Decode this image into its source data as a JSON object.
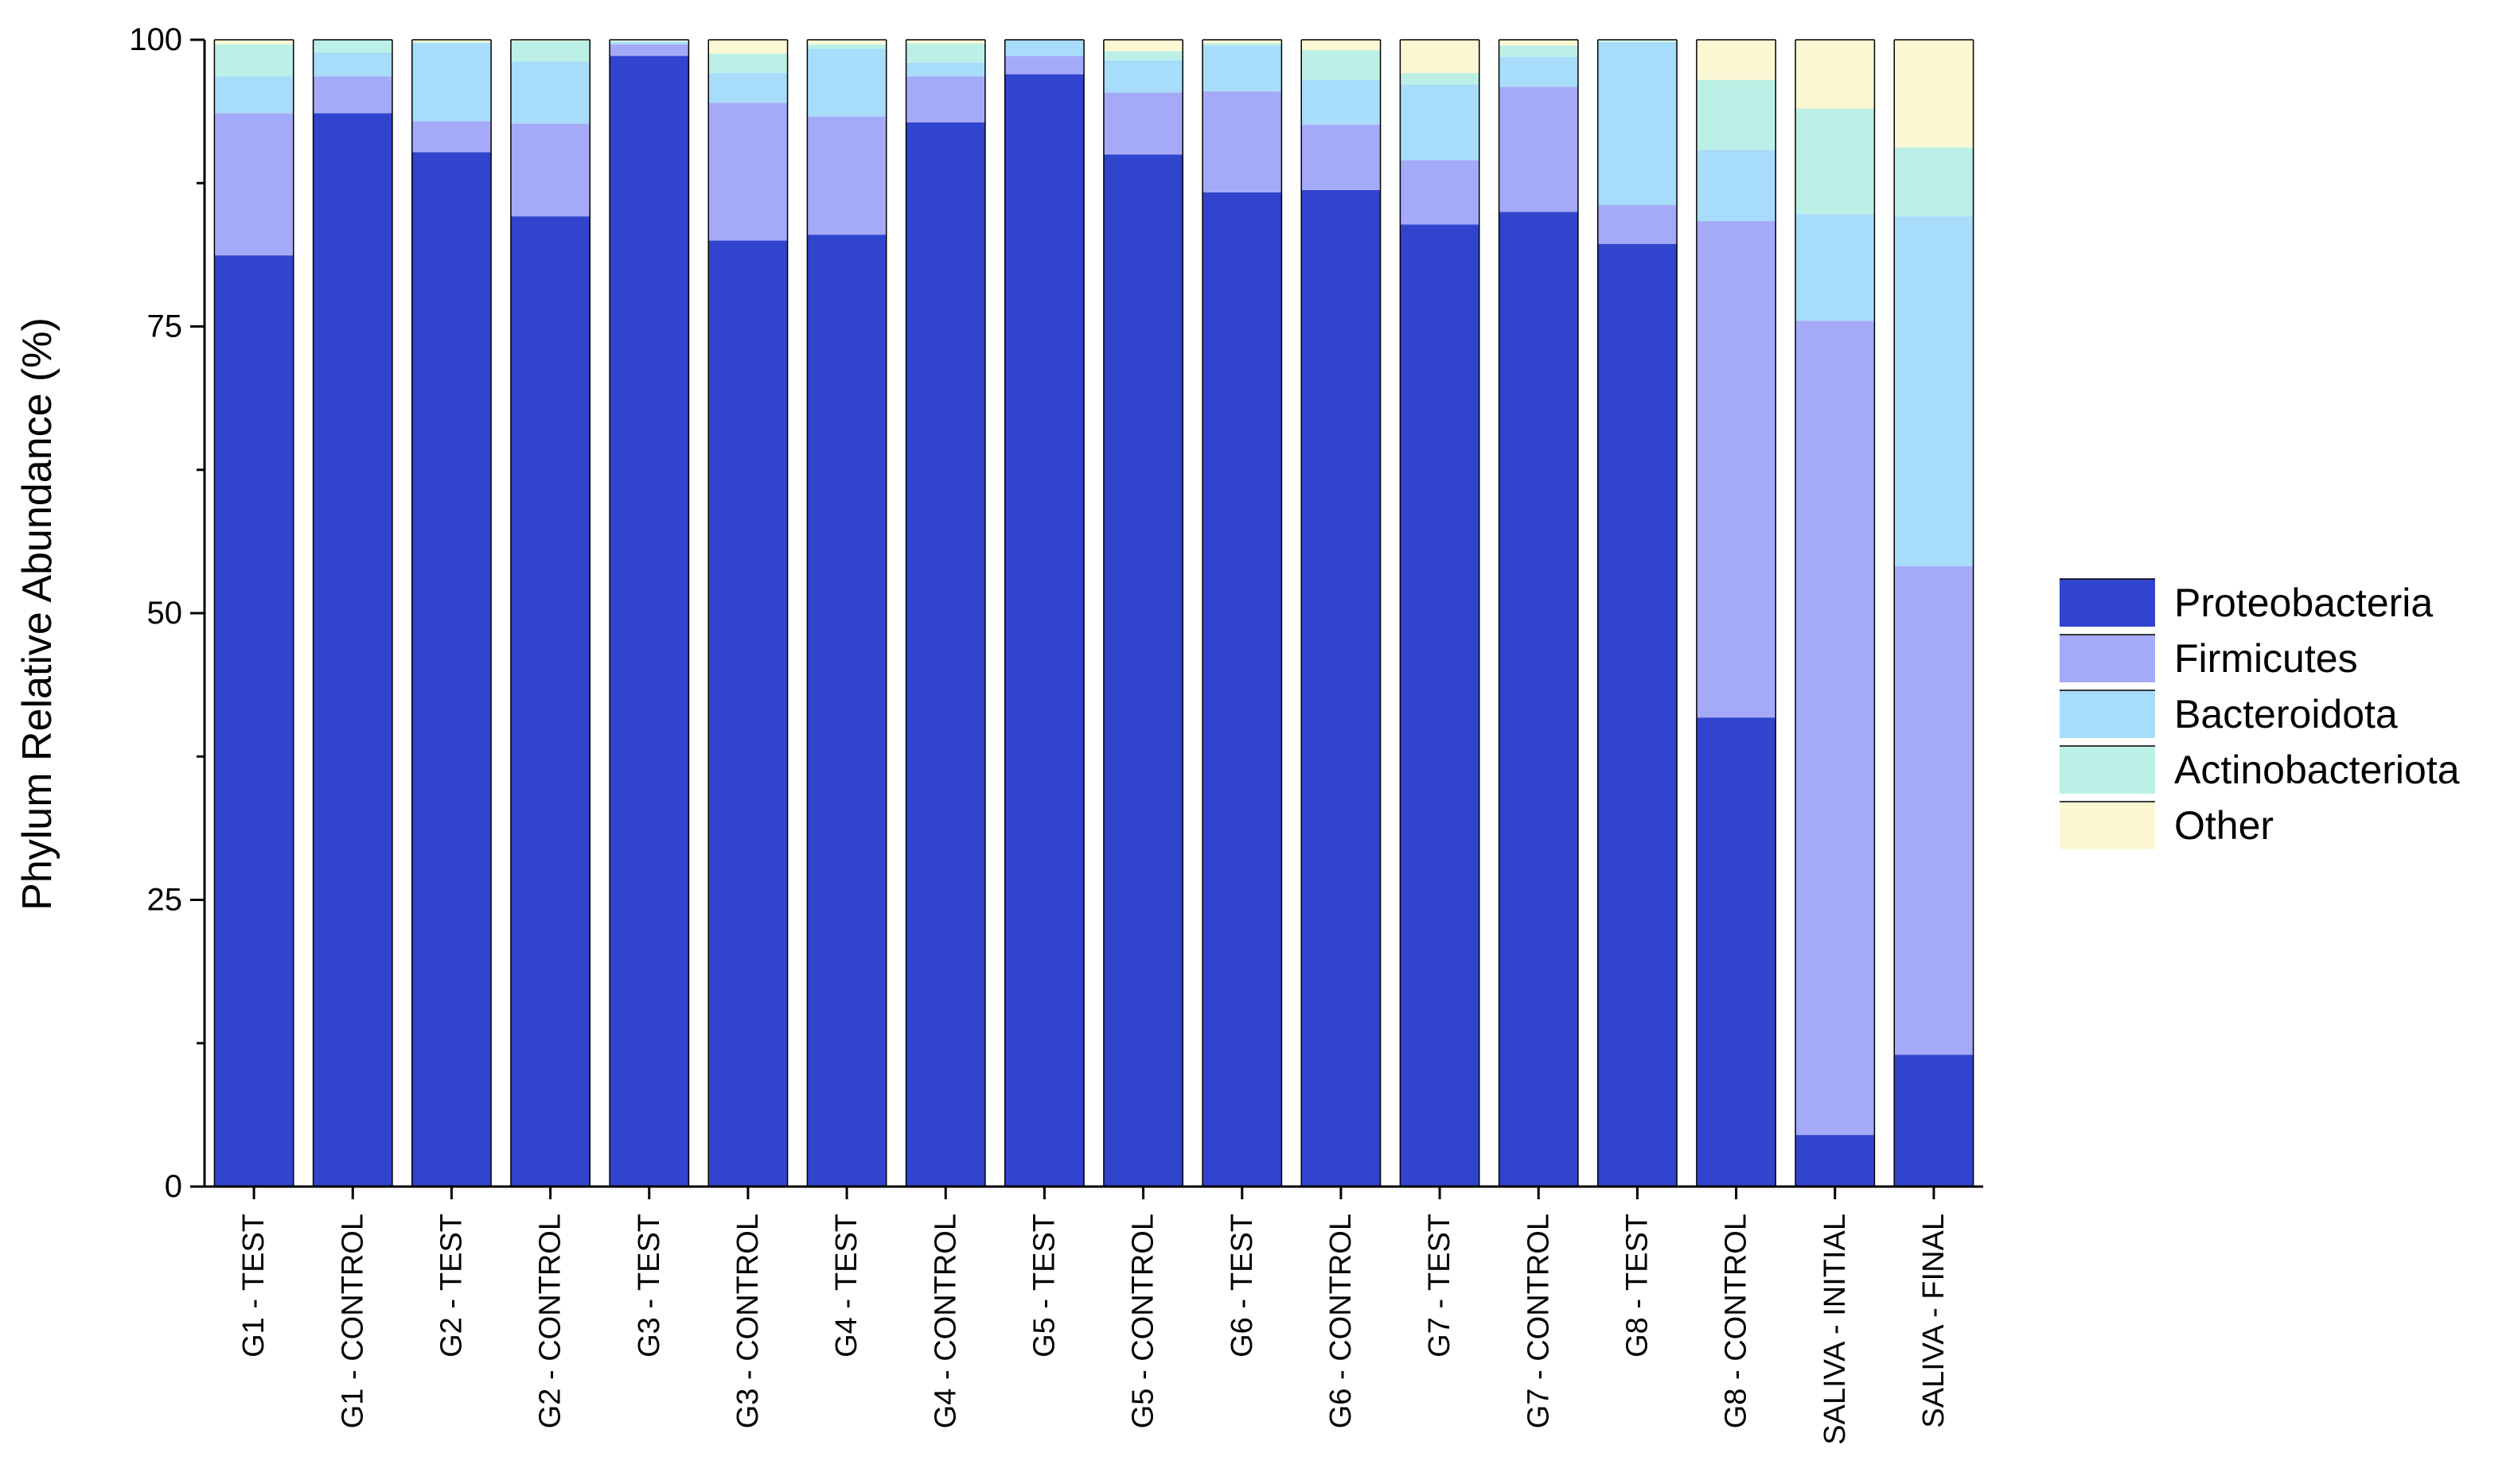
{
  "chart_data": {
    "type": "bar",
    "stacked": true,
    "title": "",
    "xlabel": "",
    "ylabel": "Phylum Relative Abundance (%)",
    "ylim": [
      0,
      100
    ],
    "yticks": [
      0,
      25,
      50,
      75,
      100
    ],
    "grid": false,
    "legend_position": "right",
    "categories": [
      "G1 - TEST",
      "G1 - CONTROL",
      "G2 - TEST",
      "G2 - CONTROL",
      "G3 - TEST",
      "G3 - CONTROL",
      "G4 - TEST",
      "G4 - CONTROL",
      "G5 - TEST",
      "G5 - CONTROL",
      "G6 - TEST",
      "G6 - CONTROL",
      "G7 - TEST",
      "G7 - CONTROL",
      "G8 - TEST",
      "G8 - CONTROL",
      "SALIVA - INITIAL",
      "SALIVA - FINAL"
    ],
    "series": [
      {
        "name": "Proteobacteria",
        "color": "#3144cd",
        "values": [
          81.2,
          93.6,
          90.2,
          84.6,
          98.6,
          82.5,
          83.0,
          92.8,
          97.0,
          90.0,
          86.7,
          86.9,
          83.9,
          85.0,
          82.2,
          40.9,
          4.5,
          11.5
        ]
      },
      {
        "name": "Firmicutes",
        "color": "#a4aaf7",
        "values": [
          12.4,
          3.2,
          2.7,
          8.1,
          1.0,
          12.0,
          10.3,
          4.0,
          1.6,
          5.4,
          8.8,
          5.7,
          5.6,
          10.9,
          3.4,
          43.3,
          71.0,
          42.6
        ]
      },
      {
        "name": "Bacteroidota",
        "color": "#a7dcfb",
        "values": [
          3.2,
          2.1,
          6.8,
          5.4,
          0.2,
          2.6,
          5.9,
          1.2,
          1.4,
          2.8,
          4.0,
          3.9,
          6.6,
          2.6,
          14.2,
          6.2,
          9.3,
          30.5
        ]
      },
      {
        "name": "Actinobacteriota",
        "color": "#bcf0e6",
        "values": [
          2.8,
          1.1,
          0.1,
          1.8,
          0.1,
          1.7,
          0.4,
          1.7,
          0.0,
          0.8,
          0.2,
          2.6,
          1.0,
          1.0,
          0.1,
          6.1,
          9.2,
          6.0
        ]
      },
      {
        "name": "Other",
        "color": "#fcf8d4",
        "values": [
          0.4,
          0.0,
          0.2,
          0.1,
          0.1,
          1.2,
          0.4,
          0.3,
          0.0,
          1.0,
          0.3,
          0.9,
          2.9,
          0.5,
          0.1,
          3.5,
          6.0,
          9.4
        ]
      }
    ]
  }
}
